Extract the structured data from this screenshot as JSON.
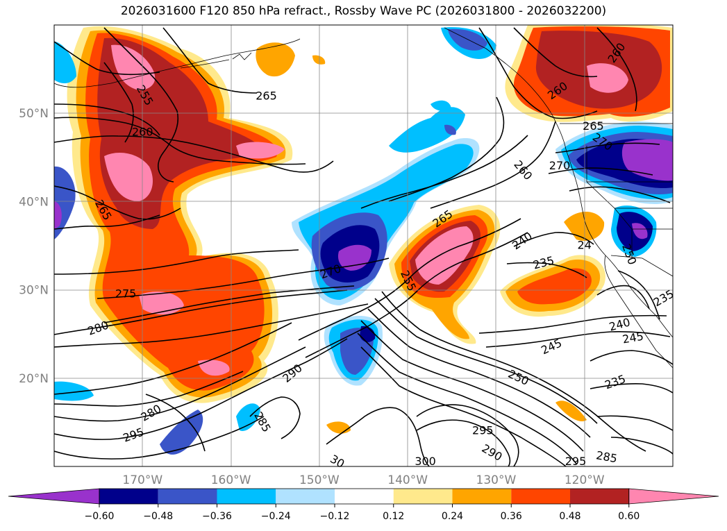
{
  "title": "2026031600 F120 850 hPa refract., Rossby Wave PC (2026031800 - 2026032200)",
  "map": {
    "lon_range": [
      -180,
      -110
    ],
    "lat_range": [
      10,
      60
    ],
    "lat_ticks": [
      {
        "lat": 50,
        "label": "50°N"
      },
      {
        "lat": 40,
        "label": "40°N"
      },
      {
        "lat": 30,
        "label": "30°N"
      },
      {
        "lat": 20,
        "label": "20°N"
      }
    ],
    "lon_ticks": [
      {
        "lon": -170,
        "label": "170°W"
      },
      {
        "lon": -160,
        "label": "160°W"
      },
      {
        "lon": -150,
        "label": "150°W"
      },
      {
        "lon": -140,
        "label": "140°W"
      },
      {
        "lon": -130,
        "label": "130°W"
      },
      {
        "lon": -120,
        "label": "120°W"
      }
    ],
    "tick_label_color": "#808080",
    "contour_labels": [
      {
        "text": "265",
        "lon": -174.5,
        "lat": 39.0,
        "rot": -60
      },
      {
        "text": "255",
        "lon": -169.8,
        "lat": 52.0,
        "rot": -60
      },
      {
        "text": "260",
        "lon": -170.0,
        "lat": 47.8,
        "rot": 0
      },
      {
        "text": "265",
        "lon": -156.0,
        "lat": 51.9,
        "rot": 0
      },
      {
        "text": "260",
        "lon": -116.3,
        "lat": 56.8,
        "rot": 55
      },
      {
        "text": "260",
        "lon": -123.0,
        "lat": 52.5,
        "rot": 35
      },
      {
        "text": "265",
        "lon": -119.0,
        "lat": 48.5,
        "rot": 0
      },
      {
        "text": "260",
        "lon": -127.0,
        "lat": 43.5,
        "rot": -50
      },
      {
        "text": "270",
        "lon": -122.8,
        "lat": 44.0,
        "rot": 0
      },
      {
        "text": "270",
        "lon": -118.0,
        "lat": 46.7,
        "rot": -35
      },
      {
        "text": "265",
        "lon": -136.0,
        "lat": 38.0,
        "rot": 35
      },
      {
        "text": "270",
        "lon": -148.7,
        "lat": 32.0,
        "rot": 20
      },
      {
        "text": "255",
        "lon": -140.0,
        "lat": 31.0,
        "rot": -65
      },
      {
        "text": "240",
        "lon": -127.0,
        "lat": 35.5,
        "rot": 35
      },
      {
        "text": "235",
        "lon": -124.6,
        "lat": 33.0,
        "rot": 15
      },
      {
        "text": "24",
        "lon": -120.0,
        "lat": 35.0,
        "rot": 0
      },
      {
        "text": "250",
        "lon": -115.0,
        "lat": 34.0,
        "rot": -70
      },
      {
        "text": "235",
        "lon": -111.0,
        "lat": 29.0,
        "rot": 30
      },
      {
        "text": "275",
        "lon": -171.9,
        "lat": 29.5,
        "rot": 0
      },
      {
        "text": "280",
        "lon": -175.0,
        "lat": 25.6,
        "rot": 20
      },
      {
        "text": "240",
        "lon": -116.0,
        "lat": 26.0,
        "rot": 15
      },
      {
        "text": "245",
        "lon": -114.5,
        "lat": 24.5,
        "rot": 10
      },
      {
        "text": "245",
        "lon": -123.7,
        "lat": 23.5,
        "rot": 25
      },
      {
        "text": "250",
        "lon": -127.5,
        "lat": 20.0,
        "rot": -25
      },
      {
        "text": "235",
        "lon": -116.5,
        "lat": 19.5,
        "rot": 20
      },
      {
        "text": "290",
        "lon": -153.0,
        "lat": 20.5,
        "rot": 40
      },
      {
        "text": "280",
        "lon": -169.0,
        "lat": 16.0,
        "rot": 30
      },
      {
        "text": "295",
        "lon": -171.0,
        "lat": 13.5,
        "rot": 20
      },
      {
        "text": "285",
        "lon": -156.5,
        "lat": 15.0,
        "rot": -60
      },
      {
        "text": "295",
        "lon": -131.5,
        "lat": 14.0,
        "rot": 0
      },
      {
        "text": "290",
        "lon": -130.5,
        "lat": 11.5,
        "rot": -30
      },
      {
        "text": "300",
        "lon": -138.0,
        "lat": 10.5,
        "rot": 0
      },
      {
        "text": "30",
        "lon": -148.0,
        "lat": 10.5,
        "rot": -30
      },
      {
        "text": "295",
        "lon": -121.0,
        "lat": 10.5,
        "rot": 0
      },
      {
        "text": "285",
        "lon": -117.5,
        "lat": 11.0,
        "rot": -10
      }
    ]
  },
  "colorbar": {
    "tick_labels": [
      "-0.60",
      "-0.48",
      "-0.36",
      "-0.24",
      "-0.12",
      "0.12",
      "0.24",
      "0.36",
      "0.48",
      "0.60"
    ],
    "colors": [
      "#9932cc",
      "#00008b",
      "#3a55c8",
      "#00bfff",
      "#b0e2ff",
      "#ffffff",
      "#ffe98c",
      "#ffa500",
      "#ff4500",
      "#b22222",
      "#ff86b0"
    ]
  }
}
